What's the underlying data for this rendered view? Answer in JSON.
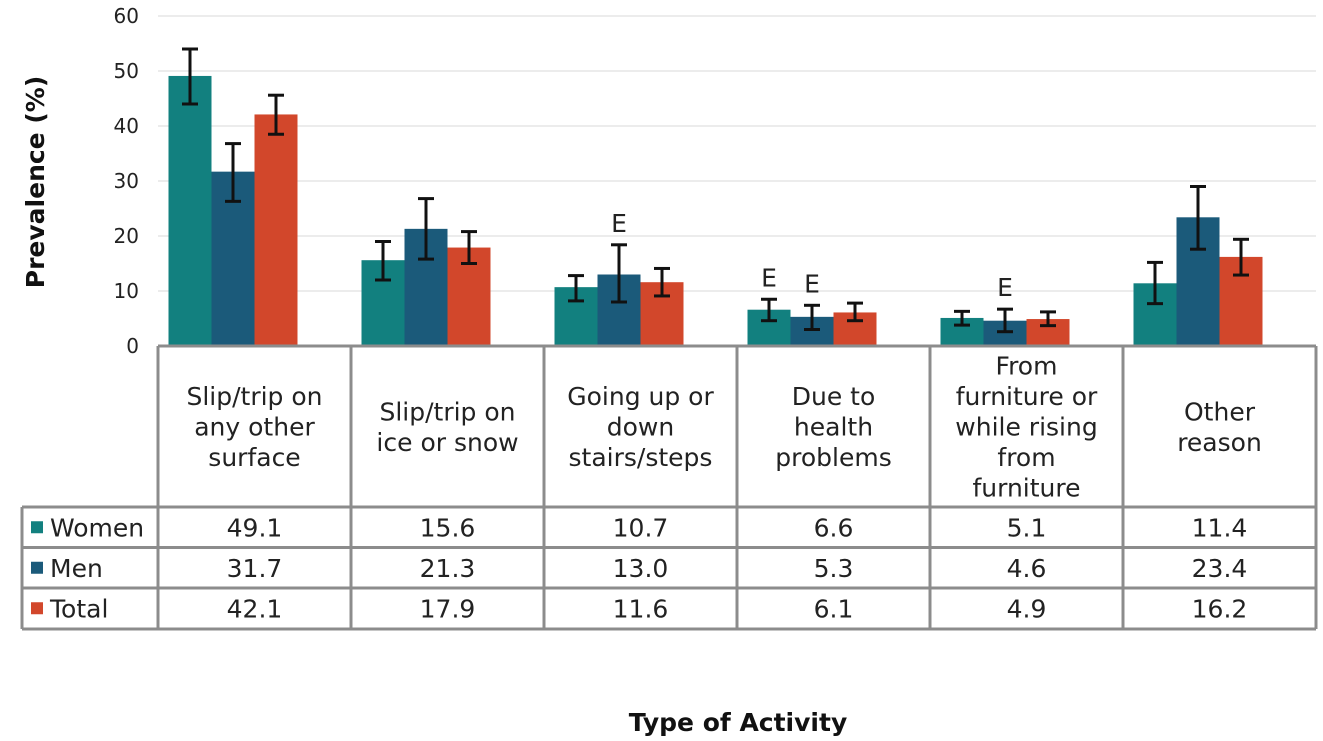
{
  "chart_data": {
    "type": "bar",
    "title": "",
    "ylabel": "Prevalence (%)",
    "xlabel": "Type of Activity",
    "ylim": [
      0,
      60
    ],
    "yticks": [
      "0",
      "10",
      "20",
      "30",
      "40",
      "50",
      "60"
    ],
    "grid": true,
    "legend_placement": "left of data table",
    "categories": [
      "Slip/trip on any other surface",
      "Slip/trip on ice or snow",
      "Going up or down stairs/steps",
      "Due to health problems",
      "From furniture or while rising from furniture",
      "Other reason"
    ],
    "category_lines": [
      [
        "Slip/trip on",
        "any other",
        "surface"
      ],
      [
        "Slip/trip on",
        "ice or snow"
      ],
      [
        "Going up or",
        "down",
        "stairs/steps"
      ],
      [
        "Due to",
        "health",
        "problems"
      ],
      [
        "From",
        "furniture or",
        "while rising",
        "from",
        "furniture"
      ],
      [
        "Other",
        "reason"
      ]
    ],
    "series": [
      {
        "name": "Women",
        "color": "#12807f",
        "values": [
          49.1,
          15.6,
          10.7,
          6.6,
          5.1,
          11.4
        ],
        "labels": [
          "49.1",
          "15.6",
          "10.7",
          "6.6",
          "5.1",
          "11.4"
        ],
        "ci": [
          [
            44.0,
            54.0
          ],
          [
            12.0,
            19.0
          ],
          [
            8.2,
            12.8
          ],
          [
            4.6,
            8.5
          ],
          [
            3.8,
            6.3
          ],
          [
            7.7,
            15.2
          ]
        ],
        "flags": [
          "",
          "",
          "",
          "E",
          "",
          ""
        ]
      },
      {
        "name": "Men",
        "color": "#1b5a7a",
        "values": [
          31.7,
          21.3,
          13.0,
          5.3,
          4.6,
          23.4
        ],
        "labels": [
          "31.7",
          "21.3",
          "13.0",
          "5.3",
          "4.6",
          "23.4"
        ],
        "ci": [
          [
            26.3,
            36.8
          ],
          [
            15.8,
            26.8
          ],
          [
            8.0,
            18.4
          ],
          [
            3.0,
            7.4
          ],
          [
            2.6,
            6.7
          ],
          [
            17.6,
            29.0
          ]
        ],
        "flags": [
          "",
          "",
          "E",
          "E",
          "E",
          ""
        ]
      },
      {
        "name": "Total",
        "color": "#d2472b",
        "values": [
          42.1,
          17.9,
          11.6,
          6.1,
          4.9,
          16.2
        ],
        "labels": [
          "42.1",
          "17.9",
          "11.6",
          "6.1",
          "4.9",
          "16.2"
        ],
        "ci": [
          [
            38.5,
            45.6
          ],
          [
            15.0,
            20.8
          ],
          [
            9.1,
            14.1
          ],
          [
            4.6,
            7.8
          ],
          [
            3.7,
            6.2
          ],
          [
            12.9,
            19.4
          ]
        ],
        "flags": [
          "",
          "",
          "",
          "",
          "",
          ""
        ]
      }
    ]
  }
}
